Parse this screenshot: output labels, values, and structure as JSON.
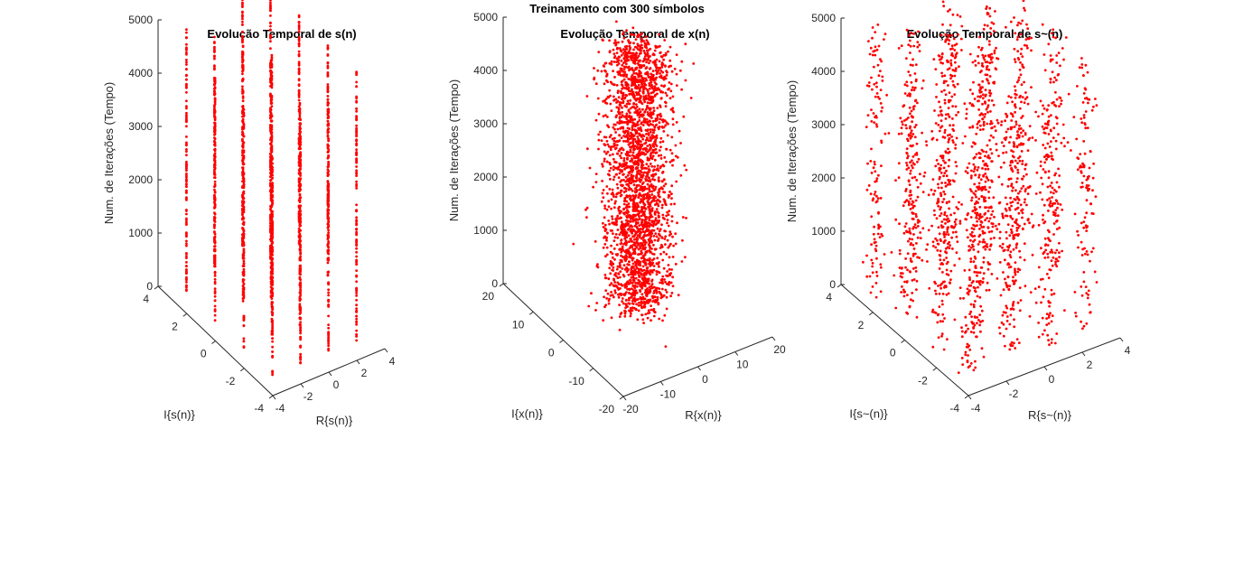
{
  "figure": {
    "title": "Treinamento com 300 símbolos"
  },
  "colors": {
    "marker": "#ff0000",
    "axis": "#262626"
  },
  "chart_data": [
    {
      "type": "scatter3d",
      "title": "Evolução Temporal de s(n)",
      "xlabel": "R{s(n)}",
      "ylabel": "I{s(n)}",
      "zlabel": "Num. de Iterações (Tempo)",
      "xlim": [
        -4,
        4
      ],
      "ylim": [
        -4,
        4
      ],
      "zlim": [
        0,
        5000
      ],
      "xticks": [
        "-4",
        "-2",
        "0",
        "2",
        "4"
      ],
      "yticks": [
        "-4",
        "-2",
        "0",
        "2",
        "4"
      ],
      "zticks": [
        "0",
        "1000",
        "2000",
        "3000",
        "4000",
        "5000"
      ],
      "points_per_column": 110,
      "jitter": 0,
      "columns": [
        [
          -3,
          -3,
          0,
          4100
        ],
        [
          -3,
          -1,
          0,
          4500
        ],
        [
          -3,
          1,
          0,
          4600
        ],
        [
          -3,
          3,
          0,
          5000
        ],
        [
          -1,
          -3,
          0,
          4700
        ],
        [
          -1,
          -1,
          0,
          5300
        ],
        [
          -1,
          1,
          150,
          5100
        ],
        [
          -1,
          3,
          300,
          4700
        ],
        [
          1,
          -3,
          0,
          4700
        ],
        [
          1,
          -1,
          0,
          4300
        ],
        [
          1,
          1,
          0,
          4600
        ],
        [
          1,
          3,
          400,
          5100
        ],
        [
          3,
          -3,
          0,
          5050
        ],
        [
          3,
          -1,
          700,
          5050
        ],
        [
          3,
          1,
          750,
          5100
        ],
        [
          3,
          3,
          0,
          5000
        ]
      ]
    },
    {
      "type": "scatter3d",
      "title": "Evolução Temporal de x(n)",
      "xlabel": "R{x(n)}",
      "ylabel": "I{x(n)}",
      "zlabel": "Num. de Iterações (Tempo)",
      "xlim": [
        -20,
        20
      ],
      "ylim": [
        -20,
        20
      ],
      "zlim": [
        0,
        5000
      ],
      "xticks": [
        "-20",
        "-10",
        "0",
        "10",
        "20"
      ],
      "yticks": [
        "-20",
        "-10",
        "0",
        "10",
        "20"
      ],
      "zticks": [
        "0",
        "1000",
        "2000",
        "3000",
        "4000",
        "5000"
      ],
      "cloud": {
        "count": 2600,
        "sigma": 3.4,
        "zmin": 0,
        "zmax": 5000
      }
    },
    {
      "type": "scatter3d",
      "title": "Evolução Temporal de s~(n)",
      "xlabel": "R{s~(n)}",
      "ylabel": "I{s~(n)}",
      "zlabel": "Num. de Iterações (Tempo)",
      "xlim": [
        -4,
        4
      ],
      "ylim": [
        -4,
        4
      ],
      "zlim": [
        0,
        5000
      ],
      "xticks": [
        "-4",
        "-2",
        "0",
        "2",
        "4"
      ],
      "yticks": [
        "-4",
        "-2",
        "0",
        "2",
        "4"
      ],
      "zticks": [
        "0",
        "1000",
        "2000",
        "3000",
        "4000",
        "5000"
      ],
      "points_per_column": 120,
      "jitter": 0.22,
      "columns": [
        [
          -3,
          -3,
          0,
          4100
        ],
        [
          -3,
          -1,
          0,
          4500
        ],
        [
          -3,
          1,
          0,
          4600
        ],
        [
          -3,
          3,
          0,
          5000
        ],
        [
          -1,
          -3,
          0,
          4700
        ],
        [
          -1,
          -1,
          0,
          5300
        ],
        [
          -1,
          1,
          150,
          5100
        ],
        [
          -1,
          3,
          300,
          4700
        ],
        [
          1,
          -3,
          0,
          4700
        ],
        [
          1,
          -1,
          0,
          4300
        ],
        [
          1,
          1,
          0,
          4600
        ],
        [
          1,
          3,
          400,
          5100
        ],
        [
          3,
          -3,
          0,
          5050
        ],
        [
          3,
          -1,
          700,
          5050
        ],
        [
          3,
          1,
          750,
          5100
        ],
        [
          3,
          3,
          0,
          5000
        ]
      ]
    }
  ]
}
